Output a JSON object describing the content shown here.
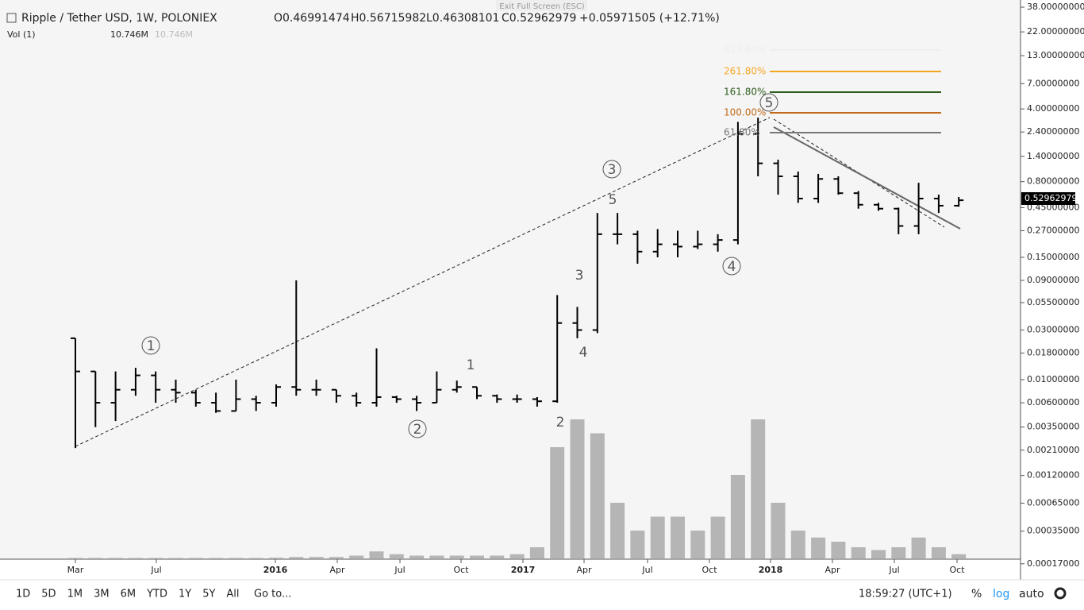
{
  "header": {
    "symbol": "Ripple / Tether USD, 1W, POLONIEX",
    "open": "O0.46991474",
    "high": "H0.56715982",
    "low": "L0.46308101",
    "close": "C0.52962979",
    "change": "+0.05971505 (+12.71%)",
    "exit": "Exit Full Screen (ESC)"
  },
  "volume_legend": {
    "label": "Vol (1)",
    "value": "10.746M",
    "value2": "10.746M"
  },
  "price_axis": [
    "38.00000000",
    "22.00000000",
    "13.00000000",
    "7.00000000",
    "4.00000000",
    "2.40000000",
    "1.40000000",
    "0.80000000",
    "0.45000000",
    "0.27000000",
    "0.15000000",
    "0.09000000",
    "0.05500000",
    "0.03000000",
    "0.01800000",
    "0.01000000",
    "0.00600000",
    "0.00350000",
    "0.00210000",
    "0.00120000",
    "0.00065000",
    "0.00035000",
    "0.00017000"
  ],
  "last_price": "0.52962979",
  "time_axis": [
    "Mar",
    "Jul",
    "2016",
    "Apr",
    "Jul",
    "Oct",
    "2017",
    "Apr",
    "Jul",
    "Oct",
    "2018",
    "Apr",
    "Jul",
    "Oct"
  ],
  "fib_levels": [
    "423.60%",
    "261.80%",
    "161.80%",
    "100.00%",
    "61.80%"
  ],
  "waves": [
    "1",
    "2",
    "3",
    "4",
    "5",
    "1",
    "2",
    "3",
    "4",
    "5"
  ],
  "bars": [
    [
      0.025,
      0.025,
      0.0022,
      0.012
    ],
    [
      0.012,
      0.012,
      0.0035,
      0.006
    ],
    [
      0.006,
      0.012,
      0.004,
      0.008
    ],
    [
      0.008,
      0.013,
      0.007,
      0.011
    ],
    [
      0.011,
      0.012,
      0.006,
      0.008
    ],
    [
      0.008,
      0.01,
      0.006,
      0.0075
    ],
    [
      0.0075,
      0.008,
      0.0055,
      0.006
    ],
    [
      0.006,
      0.0075,
      0.0048,
      0.005
    ],
    [
      0.005,
      0.01,
      0.005,
      0.0065
    ],
    [
      0.0065,
      0.007,
      0.005,
      0.006
    ],
    [
      0.006,
      0.009,
      0.0055,
      0.0085
    ],
    [
      0.0085,
      0.09,
      0.007,
      0.008
    ],
    [
      0.008,
      0.01,
      0.007,
      0.008
    ],
    [
      0.008,
      0.008,
      0.006,
      0.007
    ],
    [
      0.007,
      0.0075,
      0.0055,
      0.006
    ],
    [
      0.006,
      0.02,
      0.0055,
      0.0068
    ],
    [
      0.0068,
      0.007,
      0.006,
      0.0065
    ],
    [
      0.0065,
      0.007,
      0.005,
      0.006
    ],
    [
      0.006,
      0.012,
      0.006,
      0.008
    ],
    [
      0.008,
      0.0098,
      0.0075,
      0.0085
    ],
    [
      0.0085,
      0.0085,
      0.0065,
      0.007
    ],
    [
      0.007,
      0.0072,
      0.006,
      0.0065
    ],
    [
      0.0065,
      0.0072,
      0.006,
      0.0065
    ],
    [
      0.0065,
      0.0068,
      0.0055,
      0.0062
    ],
    [
      0.0062,
      0.065,
      0.006,
      0.035
    ],
    [
      0.035,
      0.05,
      0.025,
      0.03
    ],
    [
      0.03,
      0.4,
      0.028,
      0.25
    ],
    [
      0.25,
      0.4,
      0.2,
      0.25
    ],
    [
      0.25,
      0.27,
      0.13,
      0.17
    ],
    [
      0.17,
      0.28,
      0.15,
      0.2
    ],
    [
      0.2,
      0.27,
      0.15,
      0.19
    ],
    [
      0.19,
      0.27,
      0.18,
      0.2
    ],
    [
      0.2,
      0.25,
      0.17,
      0.22
    ],
    [
      0.22,
      3.0,
      0.2,
      2.3
    ],
    [
      2.3,
      3.3,
      0.9,
      1.2
    ],
    [
      1.2,
      1.3,
      0.6,
      0.9
    ],
    [
      0.9,
      1.0,
      0.5,
      0.55
    ],
    [
      0.55,
      0.95,
      0.5,
      0.85
    ],
    [
      0.85,
      0.9,
      0.6,
      0.62
    ],
    [
      0.62,
      0.65,
      0.44,
      0.48
    ],
    [
      0.48,
      0.5,
      0.42,
      0.44
    ],
    [
      0.44,
      0.45,
      0.25,
      0.3
    ],
    [
      0.3,
      0.78,
      0.25,
      0.55
    ],
    [
      0.55,
      0.6,
      0.4,
      0.47
    ],
    [
      0.47,
      0.57,
      0.46,
      0.53
    ]
  ],
  "volumes": [
    0.3,
    0.3,
    0.3,
    0.3,
    0.3,
    0.3,
    0.3,
    0.3,
    0.3,
    0.3,
    0.5,
    1,
    1,
    1,
    2,
    5,
    3,
    2,
    2,
    2,
    2,
    2,
    3,
    8,
    80,
    100,
    90,
    40,
    20,
    30,
    30,
    20,
    30,
    60,
    100,
    40,
    20,
    15,
    12,
    8,
    6,
    8,
    15,
    8,
    3
  ],
  "toolbar": {
    "ranges": [
      "1D",
      "5D",
      "1M",
      "3M",
      "6M",
      "YTD",
      "1Y",
      "5Y",
      "All"
    ],
    "goto": "Go to...",
    "clock": "18:59:27 (UTC+1)",
    "percent": "%",
    "log": "log",
    "auto": "auto"
  }
}
